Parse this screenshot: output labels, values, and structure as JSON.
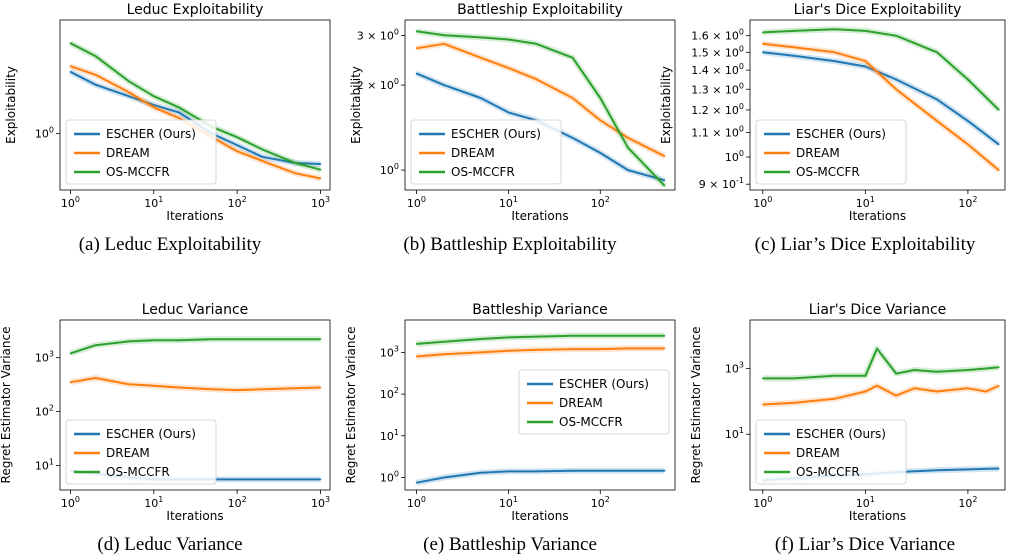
{
  "colors": {
    "escher": "#1f77b4",
    "dream": "#ff7f0e",
    "osmccfr": "#2ca02c"
  },
  "chart_data": [
    {
      "type": "line",
      "title": "Leduc Exploitability",
      "caption": "(a) Leduc Exploitability",
      "xlabel": "Iterations",
      "ylabel": "Exploitability",
      "xscale": "log",
      "yscale": "log",
      "xlim": [
        0.75,
        1300
      ],
      "ylim": [
        0.45,
        5.0
      ],
      "xticks": [
        {
          "v": 1,
          "label": "10^0"
        },
        {
          "v": 10,
          "label": "10^1"
        },
        {
          "v": 100,
          "label": "10^2"
        },
        {
          "v": 1000,
          "label": "10^3"
        }
      ],
      "yticks": [
        {
          "v": 1,
          "label": "10^0"
        }
      ],
      "legend": "lower-left",
      "series": [
        {
          "name": "ESCHER (Ours)",
          "color": "escher",
          "x": [
            1,
            2,
            5,
            10,
            20,
            50,
            100,
            200,
            500,
            1000
          ],
          "y": [
            2.4,
            2.0,
            1.7,
            1.5,
            1.35,
            1.0,
            0.85,
            0.72,
            0.66,
            0.65
          ]
        },
        {
          "name": "DREAM",
          "color": "dream",
          "x": [
            1,
            2,
            5,
            10,
            20,
            50,
            100,
            200,
            500,
            1000
          ],
          "y": [
            2.6,
            2.3,
            1.8,
            1.45,
            1.25,
            0.95,
            0.78,
            0.68,
            0.57,
            0.53
          ]
        },
        {
          "name": "OS-MCCFR",
          "color": "osmccfr",
          "x": [
            1,
            2,
            5,
            10,
            20,
            50,
            100,
            200,
            500,
            1000
          ],
          "y": [
            3.6,
            3.0,
            2.1,
            1.7,
            1.45,
            1.1,
            0.95,
            0.8,
            0.66,
            0.6
          ]
        }
      ]
    },
    {
      "type": "line",
      "title": "Battleship Exploitability",
      "caption": "(b) Battleship Exploitability",
      "xlabel": "Iterations",
      "ylabel": "Exploitability",
      "xscale": "log",
      "yscale": "log",
      "xlim": [
        0.75,
        650
      ],
      "ylim": [
        0.85,
        3.4
      ],
      "xticks": [
        {
          "v": 1,
          "label": "10^0"
        },
        {
          "v": 10,
          "label": "10^1"
        },
        {
          "v": 100,
          "label": "10^2"
        }
      ],
      "yticks": [
        {
          "v": 1,
          "label": "10^0"
        },
        {
          "v": 2,
          "label": "2 × 10^0"
        },
        {
          "v": 3,
          "label": "3 × 10^0"
        }
      ],
      "legend": "lower-left",
      "series": [
        {
          "name": "ESCHER (Ours)",
          "color": "escher",
          "x": [
            1,
            2,
            5,
            10,
            20,
            50,
            100,
            200,
            500
          ],
          "y": [
            2.2,
            2.0,
            1.8,
            1.6,
            1.5,
            1.3,
            1.15,
            1.0,
            0.92
          ]
        },
        {
          "name": "DREAM",
          "color": "dream",
          "x": [
            1,
            2,
            5,
            10,
            20,
            50,
            100,
            200,
            500
          ],
          "y": [
            2.7,
            2.8,
            2.5,
            2.3,
            2.1,
            1.8,
            1.5,
            1.3,
            1.12
          ]
        },
        {
          "name": "OS-MCCFR",
          "color": "osmccfr",
          "x": [
            1,
            2,
            5,
            10,
            20,
            50,
            100,
            200,
            500
          ],
          "y": [
            3.1,
            3.0,
            2.95,
            2.9,
            2.8,
            2.5,
            1.8,
            1.2,
            0.88
          ]
        }
      ]
    },
    {
      "type": "line",
      "title": "Liar's Dice Exploitability",
      "caption": "(c) Liar’s Dice Exploitability",
      "xlabel": "Iterations",
      "ylabel": "Exploitability",
      "xscale": "log",
      "yscale": "log",
      "xlim": [
        0.75,
        230
      ],
      "ylim": [
        0.88,
        1.7
      ],
      "xticks": [
        {
          "v": 1,
          "label": "10^0"
        },
        {
          "v": 10,
          "label": "10^1"
        },
        {
          "v": 100,
          "label": "10^2"
        }
      ],
      "yticks": [
        {
          "v": 0.9,
          "label": "9 × 10^-1"
        },
        {
          "v": 1.0,
          "label": "10^0"
        },
        {
          "v": 1.1,
          "label": "1.1 × 10^0"
        },
        {
          "v": 1.2,
          "label": "1.2 × 10^0"
        },
        {
          "v": 1.3,
          "label": "1.3 × 10^0"
        },
        {
          "v": 1.4,
          "label": "1.4 × 10^0"
        },
        {
          "v": 1.5,
          "label": "1.5 × 10^0"
        },
        {
          "v": 1.6,
          "label": "1.6 × 10^0"
        }
      ],
      "legend": "lower-left",
      "series": [
        {
          "name": "ESCHER (Ours)",
          "color": "escher",
          "x": [
            1,
            2,
            5,
            10,
            20,
            50,
            100,
            200
          ],
          "y": [
            1.5,
            1.48,
            1.45,
            1.42,
            1.35,
            1.25,
            1.15,
            1.05
          ]
        },
        {
          "name": "DREAM",
          "color": "dream",
          "x": [
            1,
            2,
            5,
            10,
            20,
            50,
            100,
            200
          ],
          "y": [
            1.55,
            1.53,
            1.5,
            1.45,
            1.3,
            1.15,
            1.05,
            0.95
          ]
        },
        {
          "name": "OS-MCCFR",
          "color": "osmccfr",
          "x": [
            1,
            2,
            5,
            10,
            20,
            50,
            100,
            200
          ],
          "y": [
            1.62,
            1.63,
            1.64,
            1.63,
            1.6,
            1.5,
            1.35,
            1.2
          ]
        }
      ]
    },
    {
      "type": "line",
      "title": "Leduc Variance",
      "caption": "(d) Leduc Variance",
      "xlabel": "Iterations",
      "ylabel": "Regret Estimator Variance",
      "xscale": "log",
      "yscale": "log",
      "xlim": [
        0.75,
        1300
      ],
      "ylim": [
        3.5,
        5000
      ],
      "xticks": [
        {
          "v": 1,
          "label": "10^0"
        },
        {
          "v": 10,
          "label": "10^1"
        },
        {
          "v": 100,
          "label": "10^2"
        },
        {
          "v": 1000,
          "label": "10^3"
        }
      ],
      "yticks": [
        {
          "v": 10,
          "label": "10^1"
        },
        {
          "v": 100,
          "label": "10^2"
        },
        {
          "v": 1000,
          "label": "10^3"
        }
      ],
      "legend": "lower-left",
      "series": [
        {
          "name": "ESCHER (Ours)",
          "color": "escher",
          "x": [
            1,
            2,
            5,
            10,
            20,
            50,
            100,
            200,
            500,
            1000
          ],
          "y": [
            8,
            7,
            6,
            5.5,
            5.5,
            5.5,
            5.5,
            5.5,
            5.5,
            5.5
          ]
        },
        {
          "name": "DREAM",
          "color": "dream",
          "x": [
            1,
            2,
            5,
            10,
            20,
            50,
            100,
            200,
            500,
            1000
          ],
          "y": [
            350,
            420,
            320,
            300,
            280,
            260,
            250,
            260,
            270,
            280
          ]
        },
        {
          "name": "OS-MCCFR",
          "color": "osmccfr",
          "x": [
            1,
            2,
            5,
            10,
            20,
            50,
            100,
            200,
            500,
            1000
          ],
          "y": [
            1200,
            1700,
            2000,
            2100,
            2100,
            2200,
            2200,
            2200,
            2200,
            2200
          ]
        }
      ]
    },
    {
      "type": "line",
      "title": "Battleship Variance",
      "caption": "(e) Battleship Variance",
      "xlabel": "Iterations",
      "ylabel": "Regret Estimator Variance",
      "xscale": "log",
      "yscale": "log",
      "xlim": [
        0.75,
        650
      ],
      "ylim": [
        0.5,
        6000
      ],
      "xticks": [
        {
          "v": 1,
          "label": "10^0"
        },
        {
          "v": 10,
          "label": "10^1"
        },
        {
          "v": 100,
          "label": "10^2"
        }
      ],
      "yticks": [
        {
          "v": 1,
          "label": "10^0"
        },
        {
          "v": 10,
          "label": "10^1"
        },
        {
          "v": 100,
          "label": "10^2"
        },
        {
          "v": 1000,
          "label": "10^3"
        }
      ],
      "legend": "center-right",
      "series": [
        {
          "name": "ESCHER (Ours)",
          "color": "escher",
          "x": [
            1,
            2,
            5,
            10,
            20,
            50,
            100,
            200,
            500
          ],
          "y": [
            0.75,
            1.0,
            1.3,
            1.4,
            1.4,
            1.45,
            1.45,
            1.45,
            1.45
          ]
        },
        {
          "name": "DREAM",
          "color": "dream",
          "x": [
            1,
            2,
            5,
            10,
            20,
            50,
            100,
            200,
            500
          ],
          "y": [
            800,
            900,
            1000,
            1100,
            1150,
            1200,
            1200,
            1250,
            1250
          ]
        },
        {
          "name": "OS-MCCFR",
          "color": "osmccfr",
          "x": [
            1,
            2,
            5,
            10,
            20,
            50,
            100,
            200,
            500
          ],
          "y": [
            1600,
            1800,
            2100,
            2300,
            2400,
            2500,
            2500,
            2500,
            2500
          ]
        }
      ]
    },
    {
      "type": "line",
      "title": "Liar's Dice Variance",
      "caption": "(f) Liar’s Dice Variance",
      "xlabel": "Iterations",
      "ylabel": "Regret Estimator Variance",
      "xscale": "log",
      "yscale": "log",
      "xlim": [
        0.75,
        230
      ],
      "ylim": [
        0.2,
        30000
      ],
      "xticks": [
        {
          "v": 1,
          "label": "10^0"
        },
        {
          "v": 10,
          "label": "10^1"
        },
        {
          "v": 100,
          "label": "10^2"
        }
      ],
      "yticks": [
        {
          "v": 10,
          "label": "10^1"
        },
        {
          "v": 1000,
          "label": "10^3"
        }
      ],
      "legend": "lower-left",
      "series": [
        {
          "name": "ESCHER (Ours)",
          "color": "escher",
          "x": [
            1,
            2,
            5,
            10,
            20,
            50,
            100,
            200
          ],
          "y": [
            0.4,
            0.45,
            0.55,
            0.6,
            0.7,
            0.8,
            0.85,
            0.9
          ]
        },
        {
          "name": "DREAM",
          "color": "dream",
          "x": [
            1,
            2,
            5,
            10,
            13,
            20,
            30,
            50,
            100,
            150,
            200
          ],
          "y": [
            80,
            90,
            120,
            200,
            300,
            150,
            250,
            200,
            250,
            200,
            300
          ]
        },
        {
          "name": "OS-MCCFR",
          "color": "osmccfr",
          "x": [
            1,
            2,
            5,
            10,
            13,
            20,
            30,
            50,
            100,
            150,
            200
          ],
          "y": [
            500,
            500,
            600,
            600,
            4000,
            700,
            900,
            800,
            900,
            1000,
            1100
          ]
        }
      ]
    }
  ]
}
